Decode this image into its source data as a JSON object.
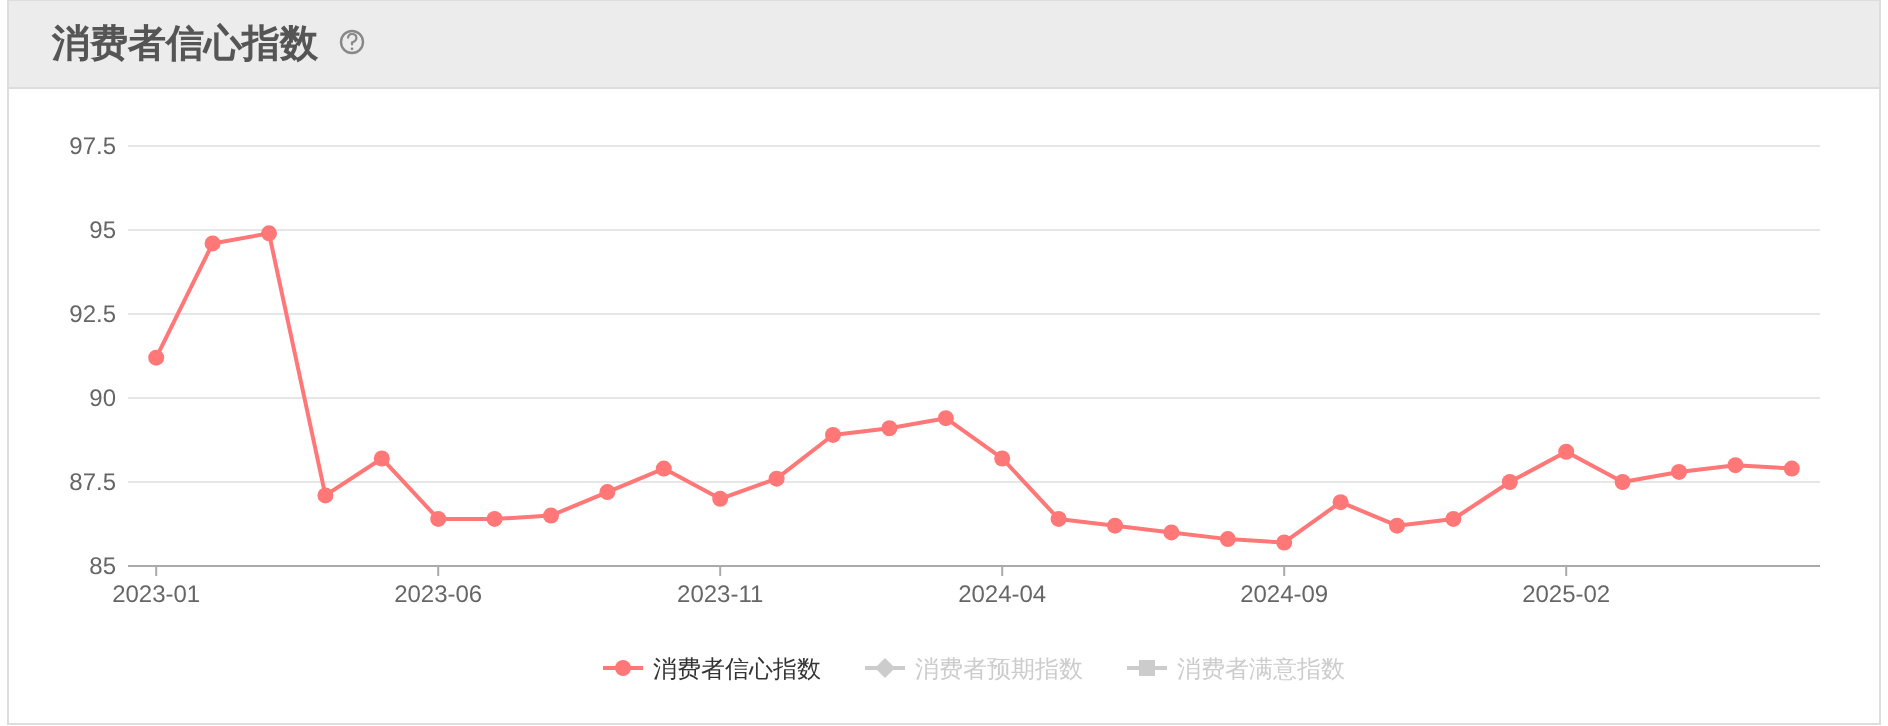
{
  "chart_data": {
    "type": "line",
    "title": "消费者信心指数",
    "categories": [
      "2023-01",
      null,
      null,
      null,
      null,
      "2023-06",
      null,
      null,
      null,
      null,
      "2023-11",
      null,
      null,
      null,
      null,
      "2024-04",
      null,
      null,
      null,
      null,
      "2024-09",
      null,
      null,
      null,
      null,
      "2025-02",
      null,
      null,
      null,
      null
    ],
    "series": [
      {
        "name": "消费者信心指数",
        "color": "#ff7777",
        "marker": "circle",
        "values": [
          91.2,
          94.6,
          94.9,
          87.1,
          88.2,
          86.4,
          86.4,
          86.5,
          87.2,
          87.9,
          87.0,
          87.6,
          88.9,
          89.1,
          89.4,
          88.2,
          86.4,
          86.2,
          86.0,
          85.8,
          85.7,
          86.9,
          86.2,
          86.4,
          87.5,
          88.4,
          87.5,
          87.8,
          88.0,
          87.9
        ]
      },
      {
        "name": "消费者预期指数",
        "color": "#cccccc",
        "marker": "diamond",
        "values": [
          null,
          null,
          null,
          null,
          null,
          null,
          null,
          null,
          null,
          null,
          null,
          null,
          null,
          null,
          null,
          null,
          null,
          null,
          null,
          null,
          null,
          null,
          null,
          null,
          null,
          null,
          null,
          null,
          null,
          null
        ]
      },
      {
        "name": "消费者满意指数",
        "color": "#cccccc",
        "marker": "square",
        "values": [
          null,
          null,
          null,
          null,
          null,
          null,
          null,
          null,
          null,
          null,
          null,
          null,
          null,
          null,
          null,
          null,
          null,
          null,
          null,
          null,
          null,
          null,
          null,
          null,
          null,
          null,
          null,
          null,
          null,
          null
        ]
      }
    ],
    "ylim": [
      85,
      97.5
    ],
    "yticks": [
      85,
      87.5,
      90,
      92.5,
      95,
      97.5
    ],
    "grid": "y",
    "legend": "bottom",
    "line_style": "solid"
  }
}
